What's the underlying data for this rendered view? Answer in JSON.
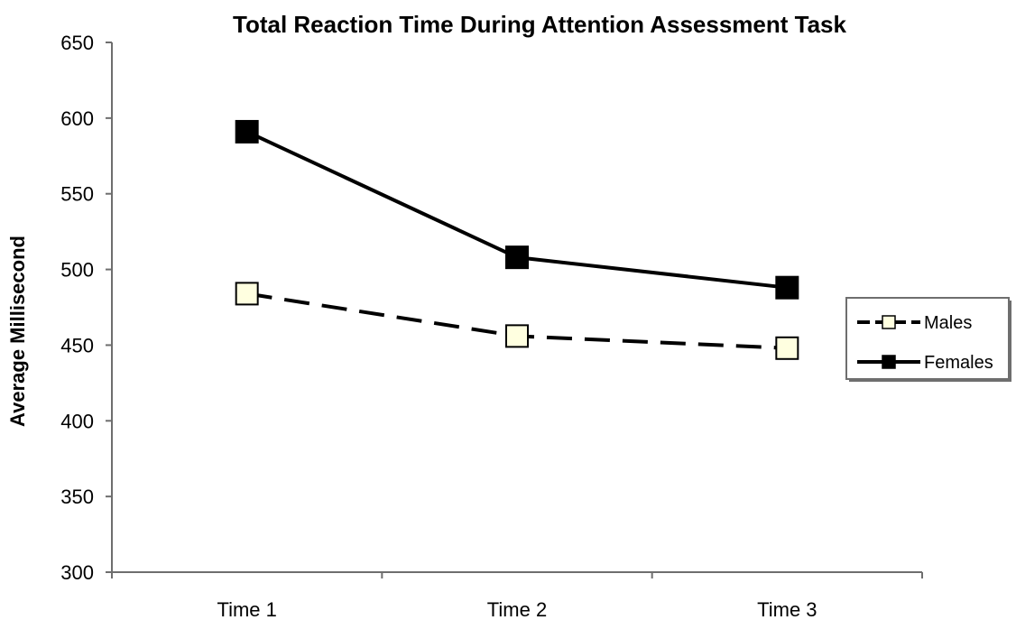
{
  "chart_data": {
    "type": "line",
    "title": "Total Reaction Time During Attention Assessment Task",
    "xlabel": "",
    "ylabel": "Average Millisecond",
    "categories": [
      "Time 1",
      "Time 2",
      "Time 3"
    ],
    "ylim": [
      300,
      650
    ],
    "yticks": [
      300,
      350,
      400,
      450,
      500,
      550,
      600,
      650
    ],
    "grid": false,
    "legend_position": "right",
    "series": [
      {
        "name": "Males",
        "values": [
          484,
          456,
          448
        ],
        "line_style": "dashed",
        "marker": "square",
        "marker_fill": "#FFFFE0",
        "line_color": "#000000"
      },
      {
        "name": "Females",
        "values": [
          591,
          508,
          488
        ],
        "line_style": "solid",
        "marker": "square",
        "marker_fill": "#000000",
        "line_color": "#000000"
      }
    ]
  }
}
